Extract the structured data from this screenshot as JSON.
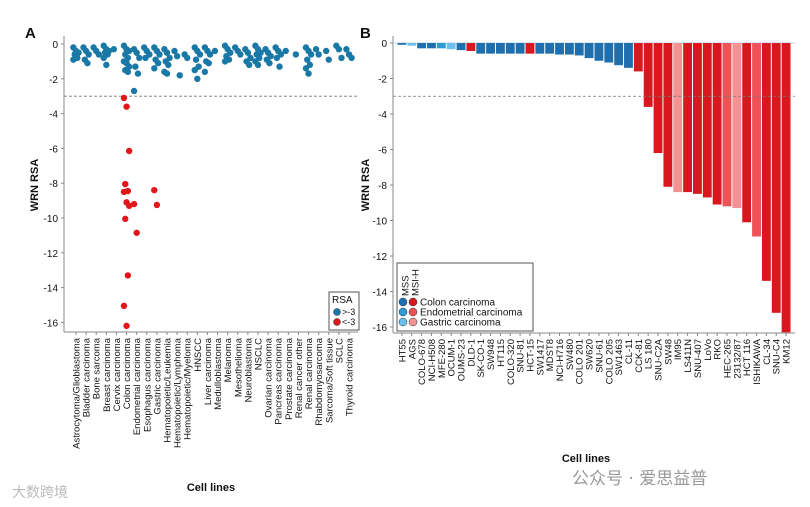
{
  "chart_data": [
    {
      "type": "scatter",
      "panel_label": "A",
      "title": "",
      "xlabel": "Cell lines",
      "ylabel": "WRN RSA",
      "ylim": [
        -16.5,
        0.3
      ],
      "yticks": [
        0,
        -2,
        -4,
        -6,
        -8,
        -10,
        -12,
        -14,
        -16
      ],
      "threshold": -3,
      "categories": [
        "Astrocytoma/Glioblastoma",
        "Bladder carcinoma",
        "Bone sarcoma",
        "Breast carcinoma",
        "Cervix carcinoma",
        "Colon carcinoma",
        "Endometrial carcinoma",
        "Esophagus carcinoma",
        "Gastric carcinoma",
        "Hematopoietic/Leukemia",
        "Hematopoietic/Lymphoma",
        "Hematopoietic/Myeloma",
        "HNSCC",
        "Liver carcinoma",
        "Medulloblastoma",
        "Melanoma",
        "Mesothelioma",
        "Neuroblastoma",
        "NSCLC",
        "Ovarian carcinoma",
        "Pancreas carcinoma",
        "Prostate carcinoma",
        "Renal cancer other",
        "Renal carcinoma",
        "Rhabdomyosarcoma",
        "Sarcoma/Soft tissue",
        "SCLC",
        "Thyroid carcinoma"
      ],
      "series": [
        {
          "name": ">-3",
          "color": "#1a78a6",
          "values": [
            [
              -0.2,
              -0.4,
              -0.5,
              -0.6,
              -0.8,
              -0.9
            ],
            [
              -0.2,
              -0.4,
              -0.6,
              -0.9,
              -1.1
            ],
            [
              -0.2,
              -0.4,
              -0.6
            ],
            [
              -0.1,
              -0.3,
              -0.4,
              -0.5,
              -0.6,
              -0.8,
              -1.2
            ],
            [
              -0.3
            ],
            [
              -0.1,
              -0.3,
              -0.4,
              -0.6,
              -0.8,
              -1.0,
              -1.1,
              -1.3,
              -1.5,
              -1.6
            ],
            [
              -0.3,
              -0.5,
              -0.8,
              -1.3,
              -1.7,
              -2.7
            ],
            [
              -0.2,
              -0.4,
              -0.6,
              -0.8
            ],
            [
              -0.2,
              -0.4,
              -0.6,
              -0.9,
              -1.1,
              -1.4
            ],
            [
              -0.3,
              -0.5,
              -0.8,
              -1.0,
              -1.2,
              -1.6,
              -1.7
            ],
            [
              -0.4,
              -0.7,
              -1.8
            ],
            [
              -0.6,
              -0.8
            ],
            [
              -0.2,
              -0.4,
              -0.6,
              -0.9,
              -1.3,
              -1.5,
              -2.0
            ],
            [
              -0.2,
              -0.4,
              -0.6,
              -1.0,
              -1.1,
              -1.6
            ],
            [
              -0.4
            ],
            [
              -0.1,
              -0.3,
              -0.5,
              -0.7,
              -0.9,
              -1.0
            ],
            [
              -0.2,
              -0.4,
              -0.6
            ],
            [
              -0.3,
              -0.5,
              -0.8,
              -1.0,
              -1.2
            ],
            [
              -0.1,
              -0.3,
              -0.5,
              -0.6,
              -0.8,
              -1.0,
              -1.2
            ],
            [
              -0.3,
              -0.5,
              -0.7,
              -0.9,
              -1.1
            ],
            [
              -0.2,
              -0.4,
              -0.6,
              -0.8,
              -1.3
            ],
            [
              -0.4
            ],
            [
              -0.6
            ],
            [
              -0.2,
              -0.4,
              -0.6,
              -0.9,
              -1.2,
              -1.4,
              -1.7
            ],
            [
              -0.3,
              -0.6
            ],
            [
              -0.4,
              -0.9
            ],
            [
              -0.1,
              -0.3,
              -0.8
            ],
            [
              -0.3,
              -0.6,
              -0.8
            ]
          ]
        },
        {
          "name": "<-3",
          "color": "#e0161b",
          "values": [
            [],
            [],
            [],
            [],
            [],
            [
              -3.1,
              -3.6,
              -6.15,
              -8.05,
              -8.45,
              -8.5,
              -9.1,
              -9.3,
              -10.05,
              -13.3,
              -15.05,
              -16.2
            ],
            [
              -9.2,
              -10.85
            ],
            [],
            [
              -8.4,
              -9.25
            ],
            [],
            [],
            [],
            [],
            [],
            [],
            [],
            [],
            [],
            [],
            [],
            [],
            [],
            [],
            [],
            [],
            [],
            [],
            []
          ]
        }
      ],
      "legend": {
        "title": "RSA",
        "position": "bottom-right",
        "entries": [
          ">-3",
          "<-3"
        ]
      }
    },
    {
      "type": "bar",
      "panel_label": "B",
      "title": "",
      "xlabel": "Cell lines",
      "ylabel": "WRN RSA",
      "ylim": [
        -16.5,
        0.3
      ],
      "yticks": [
        0,
        -2,
        -4,
        -6,
        -8,
        -10,
        -12,
        -14,
        -16
      ],
      "threshold": -3,
      "categories": [
        "HT55",
        "AGS",
        "COLO-678",
        "NCI-H508",
        "MFE-280",
        "OCUM-1",
        "OUMS-23",
        "DLD-1",
        "SK-CO-1",
        "SW948",
        "HT115",
        "COLO-320",
        "SNU-81",
        "HCT-15",
        "SW1417",
        "MDST8",
        "NCI-H716",
        "SW480",
        "COLO 201",
        "SW620",
        "SNU-61",
        "COLO 205",
        "SW1463",
        "CL-11",
        "CCK-81",
        "LS 180",
        "SNU-C2A",
        "SW48",
        "IM95",
        "LS411N",
        "SNU-407",
        "LoVo",
        "RKO",
        "HEC-265",
        "23132/87",
        "HCT 116",
        "ISHIKAWA",
        "CL-34",
        "SNU-C4",
        "KM12"
      ],
      "values": [
        -0.1,
        -0.15,
        -0.3,
        -0.3,
        -0.3,
        -0.35,
        -0.4,
        -0.45,
        -0.6,
        -0.6,
        -0.6,
        -0.6,
        -0.6,
        -0.6,
        -0.6,
        -0.6,
        -0.65,
        -0.65,
        -0.7,
        -0.85,
        -1.0,
        -1.1,
        -1.25,
        -1.4,
        -1.6,
        -3.6,
        -6.2,
        -8.1,
        -8.4,
        -8.4,
        -8.5,
        -8.7,
        -9.1,
        -9.2,
        -9.3,
        -10.1,
        -10.9,
        -13.4,
        -15.2,
        -16.3
      ],
      "groups": [
        "colon-mss",
        "gastric-mss",
        "colon-mss",
        "colon-mss",
        "endometrial-mss",
        "gastric-mss",
        "colon-mss",
        "colon-msi",
        "colon-mss",
        "colon-mss",
        "colon-mss",
        "colon-mss",
        "colon-mss",
        "colon-msi",
        "colon-mss",
        "colon-mss",
        "colon-mss",
        "colon-mss",
        "colon-mss",
        "colon-mss",
        "colon-mss",
        "colon-mss",
        "colon-mss",
        "colon-mss",
        "colon-msi",
        "colon-msi",
        "colon-msi",
        "colon-msi",
        "gastric-msi",
        "colon-msi",
        "colon-msi",
        "colon-msi",
        "colon-msi",
        "endometrial-msi",
        "gastric-msi",
        "colon-msi",
        "endometrial-msi",
        "colon-msi",
        "colon-msi",
        "colon-msi"
      ],
      "colors": {
        "colon-mss": "#1f6fae",
        "endometrial-mss": "#2f9ad8",
        "gastric-mss": "#6cc0ee",
        "colon-msi": "#d8171e",
        "endometrial-msi": "#ee5257",
        "gastric-msi": "#f39293"
      },
      "legend": {
        "position": "bottom-left",
        "columns": [
          "MSS",
          "MSI-H"
        ],
        "rows": [
          {
            "label": "Colon carcinoma",
            "keys": [
              "colon-mss",
              "colon-msi"
            ]
          },
          {
            "label": "Endometrial carcinoma",
            "keys": [
              "endometrial-mss",
              "endometrial-msi"
            ]
          },
          {
            "label": "Gastric carcinoma",
            "keys": [
              "gastric-mss",
              "gastric-msi"
            ]
          }
        ]
      }
    }
  ],
  "watermarks": {
    "left": "大数跨境",
    "right": "公众号 · 爱思益普"
  }
}
